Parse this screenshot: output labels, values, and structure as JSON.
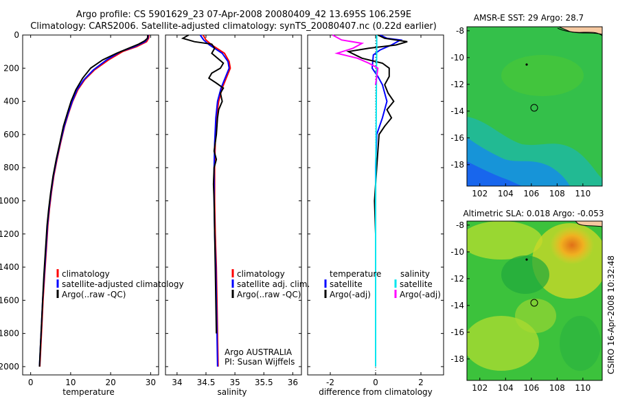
{
  "header": {
    "line1": "Argo profile: CS 5901629_23 07-Apr-2008 20080409_42 13.695S 106.259E",
    "line2": "Climatology: CARS2006. Satellite-adjusted climatology: synTS_20080407.nc (0.22d earlier)"
  },
  "footer": {
    "credit": "CSIRO 16-Apr-2008 10:32:48"
  },
  "colors": {
    "climatology": "#ff0000",
    "satellite": "#0000ff",
    "argo": "#000000",
    "sat_salinity": "#00e5ee",
    "argo_salinity": "#ff00ff",
    "land": "#f6c8a0"
  },
  "chart_data": [
    {
      "type": "line",
      "name": "temperature-panel",
      "xlabel": "temperature",
      "xlim": [
        -2,
        32
      ],
      "ylim": [
        2050,
        0
      ],
      "xticks": [
        0,
        10,
        20,
        30
      ],
      "yticks": [
        0,
        200,
        400,
        600,
        800,
        1000,
        1200,
        1400,
        1600,
        1800,
        2000
      ],
      "legend": [
        "climatology",
        "satellite-adjusted climatology",
        "Argo(..raw -QC)"
      ],
      "series": [
        {
          "name": "climatology",
          "color": "#ff0000",
          "points": [
            [
              29.6,
              0
            ],
            [
              29.5,
              20
            ],
            [
              29.0,
              40
            ],
            [
              26.5,
              70
            ],
            [
              23.0,
              100
            ],
            [
              19.5,
              150
            ],
            [
              16.0,
              210
            ],
            [
              13.5,
              270
            ],
            [
              11.8,
              330
            ],
            [
              10.5,
              400
            ],
            [
              9.5,
              470
            ],
            [
              8.5,
              550
            ],
            [
              7.5,
              650
            ],
            [
              6.6,
              750
            ],
            [
              5.8,
              850
            ],
            [
              5.2,
              950
            ],
            [
              4.7,
              1050
            ],
            [
              4.3,
              1150
            ],
            [
              3.9,
              1300
            ],
            [
              3.5,
              1450
            ],
            [
              3.1,
              1600
            ],
            [
              2.8,
              1750
            ],
            [
              2.5,
              1900
            ],
            [
              2.3,
              2000
            ]
          ]
        },
        {
          "name": "satellite-adjusted climatology",
          "color": "#0000ff",
          "points": [
            [
              29.4,
              0
            ],
            [
              29.3,
              20
            ],
            [
              28.6,
              40
            ],
            [
              26.0,
              70
            ],
            [
              22.5,
              100
            ],
            [
              19.0,
              150
            ],
            [
              15.7,
              210
            ],
            [
              13.3,
              270
            ],
            [
              11.6,
              330
            ],
            [
              10.4,
              400
            ],
            [
              9.4,
              470
            ],
            [
              8.4,
              550
            ],
            [
              7.4,
              650
            ],
            [
              6.5,
              750
            ],
            [
              5.7,
              850
            ],
            [
              5.1,
              950
            ],
            [
              4.6,
              1050
            ],
            [
              4.2,
              1150
            ],
            [
              3.8,
              1300
            ],
            [
              3.4,
              1450
            ],
            [
              3.0,
              1600
            ],
            [
              2.7,
              1750
            ],
            [
              2.4,
              1900
            ],
            [
              2.2,
              2000
            ]
          ]
        },
        {
          "name": "Argo(..raw -QC)",
          "color": "#000000",
          "points": [
            [
              29.3,
              0
            ],
            [
              29.2,
              20
            ],
            [
              28.5,
              35
            ],
            [
              27.0,
              55
            ],
            [
              24.5,
              80
            ],
            [
              21.5,
              110
            ],
            [
              18.0,
              150
            ],
            [
              15.0,
              200
            ],
            [
              13.0,
              260
            ],
            [
              11.3,
              330
            ],
            [
              10.1,
              400
            ],
            [
              9.2,
              470
            ],
            [
              8.2,
              550
            ],
            [
              7.3,
              650
            ],
            [
              6.4,
              750
            ],
            [
              5.6,
              850
            ],
            [
              5.0,
              950
            ],
            [
              4.5,
              1050
            ],
            [
              4.1,
              1150
            ],
            [
              3.7,
              1300
            ],
            [
              3.3,
              1450
            ],
            [
              3.0,
              1600
            ],
            [
              2.7,
              1750
            ],
            [
              2.4,
              1900
            ],
            [
              2.2,
              2000
            ]
          ]
        }
      ]
    },
    {
      "type": "line",
      "name": "salinity-panel",
      "xlabel": "salinity",
      "xlim": [
        33.8,
        36.15
      ],
      "ylim": [
        2050,
        0
      ],
      "xticks": [
        34,
        34.5,
        35,
        35.5,
        36
      ],
      "legend": [
        "climatology",
        "satellite adj. clim.",
        "Argo(..raw -QC)"
      ],
      "annotations": [
        "Argo AUSTRALIA",
        "PI: Susan Wijffels"
      ],
      "series": [
        {
          "name": "climatology",
          "color": "#ff0000",
          "points": [
            [
              34.45,
              0
            ],
            [
              34.5,
              30
            ],
            [
              34.6,
              60
            ],
            [
              34.82,
              110
            ],
            [
              34.9,
              160
            ],
            [
              34.92,
              200
            ],
            [
              34.85,
              260
            ],
            [
              34.78,
              320
            ],
            [
              34.72,
              400
            ],
            [
              34.68,
              500
            ],
            [
              34.66,
              650
            ],
            [
              34.65,
              800
            ],
            [
              34.65,
              1000
            ],
            [
              34.66,
              1200
            ],
            [
              34.68,
              1400
            ],
            [
              34.69,
              1600
            ],
            [
              34.7,
              1800
            ],
            [
              34.71,
              2000
            ]
          ]
        },
        {
          "name": "satellite adj. clim.",
          "color": "#0000ff",
          "points": [
            [
              34.4,
              0
            ],
            [
              34.46,
              30
            ],
            [
              34.56,
              60
            ],
            [
              34.78,
              110
            ],
            [
              34.88,
              160
            ],
            [
              34.9,
              200
            ],
            [
              34.83,
              260
            ],
            [
              34.76,
              320
            ],
            [
              34.7,
              400
            ],
            [
              34.67,
              500
            ],
            [
              34.65,
              650
            ],
            [
              34.64,
              800
            ],
            [
              34.64,
              1000
            ],
            [
              34.65,
              1200
            ],
            [
              34.67,
              1400
            ],
            [
              34.68,
              1600
            ],
            [
              34.69,
              1800
            ],
            [
              34.7,
              2000
            ]
          ]
        },
        {
          "name": "Argo(..raw -QC)",
          "color": "#000000",
          "points": [
            [
              34.2,
              0
            ],
            [
              34.1,
              20
            ],
            [
              34.3,
              40
            ],
            [
              34.6,
              55
            ],
            [
              34.65,
              80
            ],
            [
              34.6,
              110
            ],
            [
              34.7,
              140
            ],
            [
              34.8,
              170
            ],
            [
              34.75,
              200
            ],
            [
              34.6,
              230
            ],
            [
              34.55,
              260
            ],
            [
              34.68,
              290
            ],
            [
              34.8,
              320
            ],
            [
              34.75,
              350
            ],
            [
              34.78,
              400
            ],
            [
              34.72,
              450
            ],
            [
              34.7,
              500
            ],
            [
              34.68,
              600
            ],
            [
              34.64,
              700
            ],
            [
              34.68,
              750
            ],
            [
              34.64,
              800
            ],
            [
              34.63,
              900
            ],
            [
              34.64,
              1000
            ],
            [
              34.65,
              1200
            ],
            [
              34.66,
              1400
            ],
            [
              34.67,
              1600
            ],
            [
              34.68,
              1800
            ]
          ]
        }
      ]
    },
    {
      "type": "line",
      "name": "difference-panel",
      "xlabel": "difference from climatology",
      "xlim": [
        -3,
        3
      ],
      "ylim": [
        2050,
        0
      ],
      "xticks": [
        -2,
        0,
        2
      ],
      "legend": [
        "temperature",
        "satellite",
        "Argo(-adj)",
        "salinity",
        "satellite",
        "Argo(-adj)"
      ],
      "series": [
        {
          "name": "temperature satellite",
          "color": "#0000ff",
          "points": [
            [
              0.2,
              0
            ],
            [
              0.5,
              20
            ],
            [
              1.1,
              30
            ],
            [
              0.7,
              60
            ],
            [
              0.2,
              90
            ],
            [
              -0.1,
              120
            ],
            [
              -0.15,
              200
            ],
            [
              0.1,
              250
            ],
            [
              0.3,
              300
            ],
            [
              0.5,
              400
            ],
            [
              0.3,
              500
            ],
            [
              0.05,
              600
            ],
            [
              0.0,
              800
            ],
            [
              0.0,
              1200
            ],
            [
              0.0,
              2000
            ]
          ]
        },
        {
          "name": "temperature Argo(-adj)",
          "color": "#000000",
          "points": [
            [
              0.1,
              0
            ],
            [
              0.4,
              20
            ],
            [
              1.4,
              40
            ],
            [
              0.9,
              60
            ],
            [
              -0.3,
              80
            ],
            [
              -1.2,
              100
            ],
            [
              -0.6,
              140
            ],
            [
              0.3,
              170
            ],
            [
              0.6,
              200
            ],
            [
              0.6,
              250
            ],
            [
              0.4,
              300
            ],
            [
              0.55,
              350
            ],
            [
              0.8,
              400
            ],
            [
              0.5,
              450
            ],
            [
              0.7,
              500
            ],
            [
              0.4,
              550
            ],
            [
              0.15,
              600
            ],
            [
              0.1,
              700
            ],
            [
              0.05,
              800
            ],
            [
              0.0,
              900
            ],
            [
              -0.05,
              1000
            ],
            [
              0.0,
              1200
            ],
            [
              0.0,
              2000
            ]
          ]
        },
        {
          "name": "salinity satellite",
          "color": "#00e5ee",
          "points": [
            [
              0.05,
              0
            ],
            [
              0.05,
              100
            ],
            [
              0.04,
              200
            ],
            [
              0.03,
              400
            ],
            [
              0.02,
              600
            ],
            [
              0.01,
              800
            ],
            [
              0.0,
              1000
            ],
            [
              0.0,
              1500
            ],
            [
              0.0,
              2000
            ]
          ]
        },
        {
          "name": "salinity Argo(-adj)",
          "color": "#ff00ff",
          "points": [
            [
              -1.9,
              0
            ],
            [
              -1.5,
              30
            ],
            [
              -0.6,
              50
            ],
            [
              -1.0,
              80
            ],
            [
              -1.7,
              110
            ],
            [
              -0.8,
              140
            ],
            [
              -0.3,
              170
            ],
            [
              0.1,
              200
            ],
            [
              0.0,
              300
            ]
          ]
        }
      ]
    },
    {
      "type": "heatmap",
      "name": "sst-map",
      "title": "AMSR-E SST: 29 Argo: 28.7",
      "xlim": [
        101,
        111.5
      ],
      "ylim": [
        -19.6,
        -7.7
      ],
      "xticks": [
        102,
        104,
        106,
        108,
        110
      ],
      "yticks": [
        -8,
        -10,
        -12,
        -14,
        -16,
        -18
      ],
      "profile_position": [
        106.26,
        -13.69
      ]
    },
    {
      "type": "heatmap",
      "name": "sla-map",
      "title": "Altimetric SLA: 0.018 Argo: -0.053",
      "xlim": [
        101,
        111.5
      ],
      "ylim": [
        -19.6,
        -7.7
      ],
      "xticks": [
        102,
        104,
        106,
        108,
        110
      ],
      "yticks": [
        -8,
        -10,
        -12,
        -14,
        -16,
        -18
      ],
      "profile_position": [
        106.26,
        -13.69
      ]
    }
  ]
}
